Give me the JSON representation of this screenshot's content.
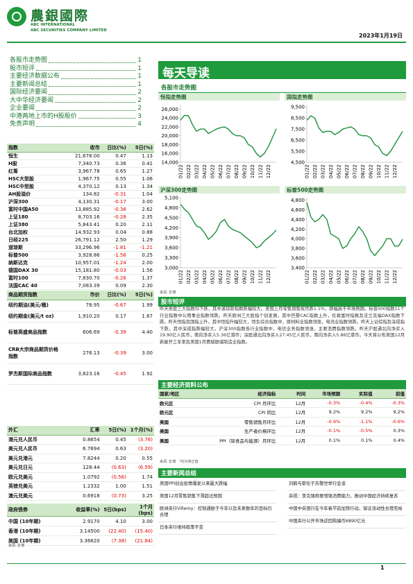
{
  "header": {
    "logo_text": "農銀國際",
    "company_en_1": "ABC INTERNATIONAL",
    "company_en_2": "ABC SECURITIES COMPANY LIMITED",
    "date": "2023年1月19日"
  },
  "toc": [
    {
      "title": "各股市走势图",
      "page": "1"
    },
    {
      "title": "股市短评",
      "page": "1"
    },
    {
      "title": "主要经济数据公布",
      "page": "1"
    },
    {
      "title": "主要新闻总结",
      "page": "1"
    },
    {
      "title": "国际经济要闻",
      "page": "2"
    },
    {
      "title": "大中华经济要闻",
      "page": "2"
    },
    {
      "title": "企业要闻",
      "page": "2"
    },
    {
      "title": "中港两地上市的H股股价",
      "page": "3"
    },
    {
      "title": "免责声明",
      "page": "4"
    }
  ],
  "banner": "每天导读",
  "market_section": "各股市走势图",
  "charts": [
    {
      "type": "line",
      "title": "恒指走势图",
      "color": "#1a8f3a",
      "categories": [
        "01/22",
        null,
        "02/22",
        null,
        "03/22",
        null,
        "04/22",
        null,
        "05/22",
        null,
        "06/22",
        null,
        "07/22",
        null,
        "08/22",
        null,
        "09/22",
        null,
        "10/22",
        null,
        "11/22",
        null,
        "12/22",
        null,
        null
      ],
      "values": [
        23500,
        24600,
        24500,
        22500,
        21000,
        21500,
        21500,
        20500,
        21000,
        21500,
        21800,
        22000,
        21500,
        20500,
        20000,
        20000,
        19500,
        18000,
        17500,
        16000,
        15200,
        16000,
        17500,
        19500,
        21600
      ],
      "ylim": [
        14000,
        27000
      ],
      "yticks": [
        {
          "value": 14000,
          "label": "14,000"
        },
        {
          "value": 16000,
          "label": "16,000"
        },
        {
          "value": 18000,
          "label": "18,000"
        },
        {
          "value": 20000,
          "label": "20,000"
        },
        {
          "value": 22000,
          "label": "22,000"
        },
        {
          "value": 24000,
          "label": "24,000"
        },
        {
          "value": 26000,
          "label": "26,000"
        }
      ]
    },
    {
      "type": "line",
      "title": "国指走势图",
      "color": "#1a8f3a",
      "categories": [
        "01/22",
        null,
        "02/22",
        null,
        "03/22",
        null,
        "04/22",
        null,
        "05/22",
        null,
        "06/22",
        null,
        "07/22",
        null,
        "08/22",
        null,
        "09/22",
        null,
        "10/22",
        null,
        "11/22",
        null,
        "12/22",
        null,
        null
      ],
      "values": [
        8300,
        8700,
        8500,
        7600,
        7200,
        7300,
        7300,
        7000,
        7200,
        7500,
        7600,
        7700,
        7500,
        7000,
        6900,
        6900,
        6700,
        6100,
        5900,
        5300,
        5100,
        5500,
        6100,
        6700,
        7300
      ],
      "ylim": [
        4500,
        9700
      ],
      "yticks": [
        {
          "value": 4500,
          "label": "4,500"
        },
        {
          "value": 5500,
          "label": "5,500"
        },
        {
          "value": 6500,
          "label": "6,500"
        },
        {
          "value": 7500,
          "label": "7,500"
        },
        {
          "value": 8500,
          "label": "8,500"
        },
        {
          "value": 9500,
          "label": "9,500"
        }
      ]
    },
    {
      "type": "line",
      "title": "沪深300走势图",
      "color": "#1a8f3a",
      "categories": [
        "01/22",
        null,
        "02/22",
        null,
        "03/22",
        null,
        "04/22",
        null,
        "05/22",
        null,
        "06/22",
        null,
        "07/22",
        null,
        "08/22",
        null,
        "09/22",
        null,
        "10/22",
        null,
        "11/22",
        null,
        "12/22",
        null,
        null
      ],
      "values": [
        4900,
        4750,
        4650,
        4450,
        4250,
        4200,
        4050,
        3850,
        3950,
        4100,
        4350,
        4450,
        4250,
        4150,
        4100,
        4050,
        3950,
        3850,
        3750,
        3600,
        3650,
        3800,
        3900,
        4000,
        4130
      ],
      "ylim": [
        3000,
        5100
      ],
      "yticks": [
        {
          "value": 3000,
          "label": "3,000"
        },
        {
          "value": 3300,
          "label": "3,300"
        },
        {
          "value": 3600,
          "label": "3,600"
        },
        {
          "value": 3900,
          "label": "3,900"
        },
        {
          "value": 4200,
          "label": "4,200"
        },
        {
          "value": 4500,
          "label": "4,500"
        },
        {
          "value": 4800,
          "label": "4,800"
        },
        {
          "value": 5100,
          "label": "5,100"
        }
      ]
    },
    {
      "type": "line",
      "title": "标普500走势图",
      "color": "#1a8f3a",
      "categories": [
        "01/22",
        null,
        "02/22",
        null,
        "03/22",
        null,
        "04/22",
        null,
        "05/22",
        null,
        "06/22",
        null,
        "07/22",
        null,
        "08/22",
        null,
        "09/22",
        null,
        "10/22",
        null,
        "11/22",
        null,
        "12/22",
        null,
        null
      ],
      "values": [
        4750,
        4450,
        4350,
        4400,
        4500,
        4400,
        4100,
        4050,
        4000,
        3800,
        3850,
        4000,
        4100,
        4250,
        4150,
        4000,
        3750,
        3650,
        3750,
        3850,
        4000,
        4000,
        3850,
        3850,
        3990
      ],
      "ylim": [
        3400,
        4850
      ],
      "yticks": [
        {
          "value": 3400,
          "label": "3,400"
        },
        {
          "value": 3600,
          "label": "3,600"
        },
        {
          "value": 3800,
          "label": "3,800"
        },
        {
          "value": 4000,
          "label": "4,000"
        },
        {
          "value": 4200,
          "label": "4,200"
        },
        {
          "value": 4400,
          "label": "4,400"
        },
        {
          "value": 4600,
          "label": "4,600"
        },
        {
          "value": 4800,
          "label": "4,800"
        }
      ]
    }
  ],
  "chart_source": "来源: 彭博",
  "index_table": {
    "columns": [
      "指数",
      "收市",
      "日比(%)",
      "5日(%)"
    ],
    "rows": [
      [
        "恒生",
        "21,678.00",
        "0.47",
        "1.13"
      ],
      [
        "H股",
        "7,340.73",
        "0.36",
        "0.41"
      ],
      [
        "红筹",
        "3,967.78",
        "0.65",
        "1.27"
      ],
      [
        "HSC大型股",
        "1,967.75",
        "0.55",
        "1.06"
      ],
      [
        "HSC中型股",
        "4,370.12",
        "0.13",
        "1.34"
      ],
      [
        "AH股溢价",
        "134.82",
        "-0.31",
        "1.04"
      ],
      [
        "沪深300",
        "4,130.31",
        "-0.17",
        "3.00"
      ],
      [
        "富时中国A50",
        "13,885.92",
        "-0.36",
        "2.62"
      ],
      [
        "上证180",
        "8,703.16",
        "-0.28",
        "2.35"
      ],
      [
        "上证380",
        "5,843.41",
        "0.20",
        "2.11"
      ],
      [
        "台北加权",
        "14,932.93",
        "0.04",
        "0.88"
      ],
      [
        "日经225",
        "26,791.12",
        "2.50",
        "1.29"
      ],
      [
        "道琼斯",
        "33,296.96",
        "-1.81",
        "-1.21"
      ],
      [
        "标普500",
        "3,928.86",
        "-1.56",
        "0.25"
      ],
      [
        "纳斯达克",
        "10,957.01",
        "-1.24",
        "2.00"
      ],
      [
        "德国DAX 30",
        "15,181.80",
        "-0.03",
        "1.56"
      ],
      [
        "富时100",
        "7,830.70",
        "-0.26",
        "1.37"
      ],
      [
        "法国CAC 40",
        "7,083.39",
        "0.09",
        "2.30"
      ]
    ]
  },
  "commodity_table": {
    "columns": [
      "商品期货指数",
      "市价",
      "日比(%)",
      "5日(%)"
    ],
    "rows": [
      [
        "纽约期油(美元/桶)",
        "78.95",
        "-0.67",
        "1.99"
      ],
      [
        "纽约期金(美元/t oz)",
        "1,910.20",
        "0.17",
        "1.67"
      ],
      [
        "标普高盛商品指数",
        "606.69",
        "-0.39",
        "4.40"
      ],
      [
        "CRB大宗商品期货价格指数",
        "276.13",
        "-0.39",
        "3.00"
      ],
      [
        "罗杰斯国际商品指数",
        "3,823.16",
        "-0.45",
        "1.92"
      ]
    ]
  },
  "fx_table": {
    "columns": [
      "外汇",
      "汇率",
      "5日(%)",
      "1个月(%)"
    ],
    "rows": [
      [
        "港元兑人民币",
        "0.8654",
        "0.45",
        "(3.76)"
      ],
      [
        "美元兑人民币",
        "6.7694",
        "0.63",
        "(3.20)"
      ],
      [
        "美元兑港元",
        "7.8244",
        "0.20",
        "0.55"
      ],
      [
        "美元兑日元",
        "128.44",
        "(0.63)",
        "(6.59)"
      ],
      [
        "欧元兑美元",
        "1.0792",
        "(0.56)",
        "1.74"
      ],
      [
        "英镑兑美元",
        "1.2332",
        "1.00",
        "1.51"
      ],
      [
        "澳元兑美元",
        "0.6918",
        "(0.73)",
        "3.25"
      ]
    ]
  },
  "bond_table": {
    "columns": [
      "政府债券",
      "收益率(%)",
      "5日(bps)",
      "1个月(bps)"
    ],
    "rows": [
      [
        "中国 (10年期)",
        "2.9170",
        "4.10",
        "3.00"
      ],
      [
        "香港 (10年期)",
        "3.14500",
        "(22.40)",
        "(15.40)"
      ],
      [
        "美国 (10年期)",
        "3.36620",
        "(7.38)",
        "(21.84)"
      ]
    ]
  },
  "left_source": "来源: 彭博",
  "commentary": {
    "title": "股市短评",
    "text": "昨天美股三大指数均下跌，其中道琼斯指数跌幅较大。美国上月零售销售按月跌1.1%，跌幅高于市场预期。标普500指数11个行业指数中公用事业指数领跌。昨天欧洲三大股指个别发展，其中巴黎CAC指数上升，伦敦富时指数及法兰克福DAX指数下跌。昨天恒指及国指上升，其中恒指升幅较大，恒生综合指数中，原材料业指数领涨，电讯业指数领跌。昨天上证综指及深成指下跌，其中深成指跌幅较大，沪深300指数各行业指数中，电信业务指数领涨，主要消费指数领跌。昨天沪股通北向净买入19.90亿人民币，南向净买入5.36亿港币；深股通北向净买入27.45亿人民币，南向净买入5.86亿港币。今天将公布美国12月新屋开工年率及美国1月费城联储制造业指数。"
  },
  "econ": {
    "title": "主要经济资料公布",
    "columns": [
      "国家/地区",
      "经济指标",
      "时间",
      "市场预期",
      "实际值",
      "前值"
    ],
    "rows": [
      [
        "欧元区",
        "CPI 月环比",
        "12月",
        "-0.3%",
        "-0.4%",
        "-0.3%"
      ],
      [
        "欧元区",
        "CPI 同比",
        "12月",
        "9.2%",
        "9.2%",
        "9.2%"
      ],
      [
        "美国",
        "零售销售月环比",
        "12月",
        "-0.9%",
        "-1.1%",
        "-0.6%"
      ],
      [
        "美国",
        "生产者价格环比",
        "12月",
        "-0.1%",
        "-0.5%",
        "0.3%"
      ],
      [
        "美国",
        "PPI（除食品与能源）月环比",
        "12月",
        "0.1%",
        "0.1%",
        "0.4%"
      ]
    ],
    "source": "来源: 彭博   *均为修正值"
  },
  "news": {
    "title": "主要新闻总结",
    "left": [
      "美国PPI创出疫情爆发以来最大跌幅",
      "美国12月零售销售下滑超过预期",
      "欧洲央行Villeroy：控制通胀于今年以及未来数年的目标仍合理",
      "日本央行维持政策不变"
    ],
    "right": [
      "刘鹤与耶伦于苏黎世举行会谈",
      "央视：李克强称要增强消费能力，推动中国经济持续复苏",
      "中国中央银行在今年春节前加快行动，保证流动性合理充裕",
      "中国央行公开市场逆回购操作6890亿元"
    ]
  },
  "page_number": "1"
}
